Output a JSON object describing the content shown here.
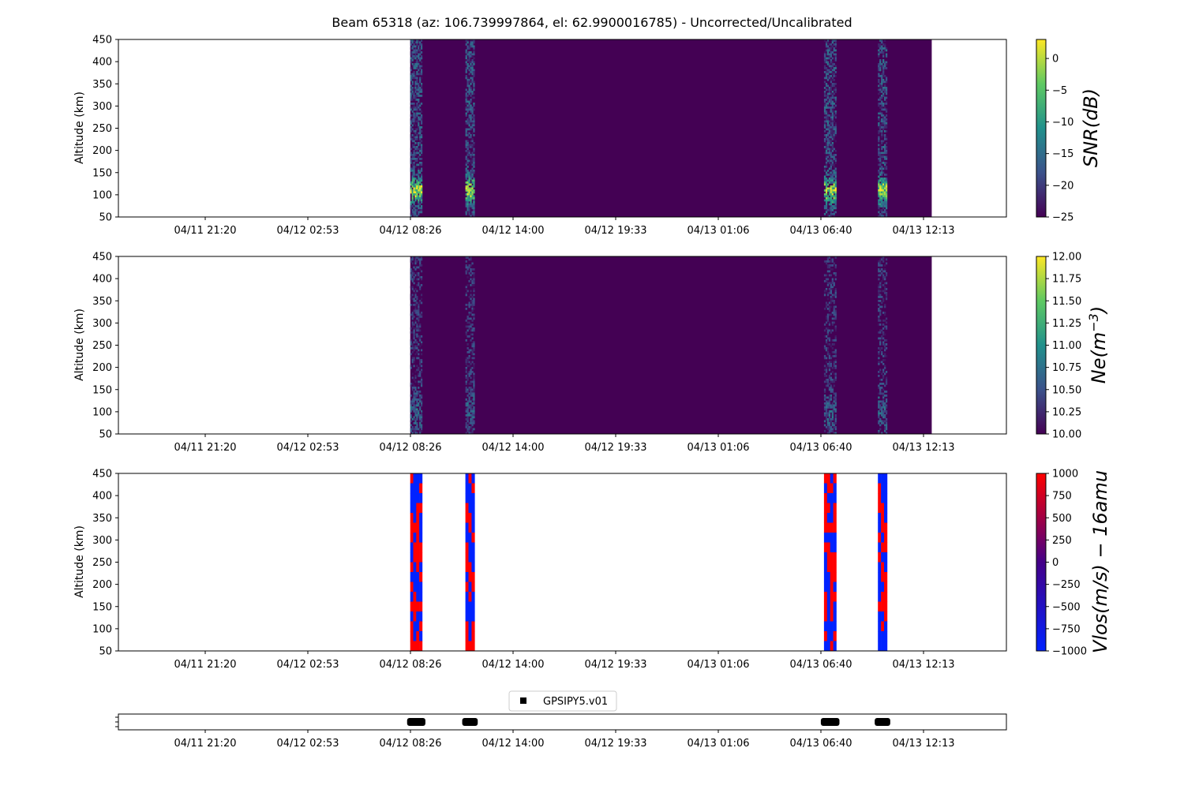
{
  "figure": {
    "title": "Beam 65318 (az: 106.739997864, el: 62.9900016785) - Uncorrected/Uncalibrated"
  },
  "time_ticks": [
    "04/11 21:20",
    "04/12 02:53",
    "04/12 08:26",
    "04/12 14:00",
    "04/12 19:33",
    "04/13 01:06",
    "04/13 06:40",
    "04/13 12:13"
  ],
  "chart_data": [
    {
      "type": "heatmap",
      "id": "snr",
      "ylabel": "Altitude (km)",
      "ylim": [
        50,
        450
      ],
      "yticks": [
        50,
        100,
        150,
        200,
        250,
        300,
        350,
        400,
        450
      ],
      "x_ticks": [
        "04/11 21:20",
        "04/12 02:53",
        "04/12 08:26",
        "04/12 14:00",
        "04/12 19:33",
        "04/13 01:06",
        "04/13 06:40",
        "04/13 12:13"
      ],
      "colorbar": {
        "label_main": "SNR(dB)",
        "label_sup": "",
        "label_tail": "",
        "range": [
          -25,
          3
        ],
        "ticks": [
          0,
          -5,
          -10,
          -15,
          -20,
          -25
        ],
        "colors": [
          "#440154",
          "#3b528b",
          "#21918c",
          "#5ec962",
          "#fde725"
        ]
      },
      "data_extent": [
        "04/12 08:26",
        "04/13 12:40"
      ],
      "active_intervals": [
        [
          "04/12 08:26",
          "04/12 09:05"
        ],
        [
          "04/12 11:25",
          "04/12 11:55"
        ],
        [
          "04/13 06:50",
          "04/13 07:30"
        ],
        [
          "04/13 09:45",
          "04/13 10:15"
        ]
      ],
      "fill_value": -25,
      "peak_value_near_110km": 0
    },
    {
      "type": "heatmap",
      "id": "ne",
      "ylabel": "Altitude (km)",
      "ylim": [
        50,
        450
      ],
      "yticks": [
        50,
        100,
        150,
        200,
        250,
        300,
        350,
        400,
        450
      ],
      "x_ticks": [
        "04/11 21:20",
        "04/12 02:53",
        "04/12 08:26",
        "04/12 14:00",
        "04/12 19:33",
        "04/13 01:06",
        "04/13 06:40",
        "04/13 12:13"
      ],
      "colorbar": {
        "label_main": "Ne(m",
        "label_sup": "−3",
        "label_tail": ")",
        "range": [
          10,
          12
        ],
        "ticks": [
          12.0,
          11.75,
          11.5,
          11.25,
          11.0,
          10.75,
          10.5,
          10.25,
          10.0
        ],
        "tick_labels": [
          "12.00",
          "11.75",
          "11.50",
          "11.25",
          "11.00",
          "10.75",
          "10.50",
          "10.25",
          "10.00"
        ],
        "colors": [
          "#440154",
          "#3b528b",
          "#21918c",
          "#5ec962",
          "#fde725"
        ]
      },
      "data_extent": [
        "04/12 08:26",
        "04/13 12:40"
      ],
      "active_intervals": [
        [
          "04/12 08:26",
          "04/12 09:05"
        ],
        [
          "04/12 11:25",
          "04/12 11:55"
        ],
        [
          "04/13 06:50",
          "04/13 07:30"
        ],
        [
          "04/13 09:45",
          "04/13 10:15"
        ]
      ],
      "fill_value": 10.0
    },
    {
      "type": "heatmap",
      "id": "vlos",
      "ylabel": "Altitude (km)",
      "ylim": [
        50,
        450
      ],
      "yticks": [
        50,
        100,
        150,
        200,
        250,
        300,
        350,
        400,
        450
      ],
      "x_ticks": [
        "04/11 21:20",
        "04/12 02:53",
        "04/12 08:26",
        "04/12 14:00",
        "04/12 19:33",
        "04/13 01:06",
        "04/13 06:40",
        "04/13 12:13"
      ],
      "colorbar": {
        "label_main": "Vlos(m/s) − 16amu",
        "label_sup": "",
        "label_tail": "",
        "range": [
          -1000,
          1000
        ],
        "ticks": [
          1000,
          750,
          500,
          250,
          0,
          -250,
          -500,
          -750,
          -1000
        ],
        "colors": [
          "#0022ff",
          "#440088",
          "#ff0000"
        ]
      },
      "active_intervals": [
        [
          "04/12 08:26",
          "04/12 09:05"
        ],
        [
          "04/12 11:25",
          "04/12 11:55"
        ],
        [
          "04/13 06:50",
          "04/13 07:30"
        ],
        [
          "04/13 09:45",
          "04/13 10:15"
        ]
      ]
    },
    {
      "type": "scatter",
      "id": "modes",
      "legend": "GPSIPY5.v01",
      "legend_position": "top-center",
      "x_ticks": [
        "04/11 21:20",
        "04/12 02:53",
        "04/12 08:26",
        "04/12 14:00",
        "04/12 19:33",
        "04/13 01:06",
        "04/13 06:40",
        "04/13 12:13"
      ],
      "segments": [
        [
          "04/12 08:26",
          "04/12 09:05"
        ],
        [
          "04/12 11:25",
          "04/12 11:55"
        ],
        [
          "04/13 06:50",
          "04/13 07:30"
        ],
        [
          "04/13 09:45",
          "04/13 10:15"
        ]
      ],
      "color": "#000000"
    }
  ]
}
